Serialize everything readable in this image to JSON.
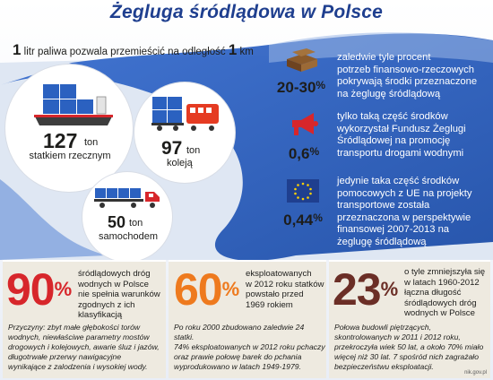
{
  "header": {
    "title": "Żegluga śródlądowa w Polsce",
    "intro_big_1": "1",
    "intro_text": " litr paliwa pozwala przemieścić na odległość ",
    "intro_big_2": "1",
    "intro_unit": " km"
  },
  "transport": [
    {
      "value": "127",
      "unit": "ton",
      "label": "statkiem rzecznym",
      "icon": "ship-icon"
    },
    {
      "value": "97",
      "unit": "ton",
      "label": "koleją",
      "icon": "train-icon"
    },
    {
      "value": "50",
      "unit": "ton",
      "label": "samochodem",
      "icon": "truck-icon"
    }
  ],
  "facts": [
    {
      "value": "20-30",
      "suffix": "%",
      "icon": "money-icon",
      "lines": [
        "zaledwie tyle procent",
        "potrzeb finansowo-rzeczowych",
        "pokrywają środki przeznaczone",
        "na żeglugę śródlądową"
      ]
    },
    {
      "value": "0,6",
      "suffix": "%",
      "icon": "megaphone-icon",
      "lines": [
        "tylko taką część środków",
        "wykorzystał Fundusz Żeglugi",
        "Śródlądowej na promocję",
        "transportu drogami wodnymi"
      ]
    },
    {
      "value": "0,44",
      "suffix": "%",
      "icon": "eu-flag-icon",
      "lines": [
        "jedynie taka część środków",
        "pomocowych z UE na projekty",
        "transportowe została",
        "przeznaczona w perspektywie",
        "finansowej 2007-2013 na",
        "żeglugę śródlądową"
      ]
    }
  ],
  "panels": [
    {
      "value": "90",
      "suffix": "%",
      "color": "#d7262b",
      "head": [
        "śródlądowych dróg",
        "wodnych w Polsce",
        "nie spełnia warunków",
        "zgodnych z ich",
        "klasyfikacją"
      ],
      "body": [
        "Przyczyny: zbyt małe głębokości torów",
        "wodnych, niewłaściwe parametry mostów",
        "drogowych i kolejowych, awarie śluz i jazów,",
        "długotrwałe przerwy nawigacyjne",
        "wynikające z zalodzenia i wysokiej wody."
      ]
    },
    {
      "value": "60",
      "suffix": "%",
      "color": "#ee7a1e",
      "head": [
        "eksploatowanych",
        "w 2012 roku statków",
        "powstało przed",
        "1969 rokiem"
      ],
      "body": [
        "Po roku 2000 zbudowano zaledwie 24 statki.",
        "74% eksploatowanych w 2012 roku pchaczy",
        "oraz prawie połowę barek do pchania",
        "wyprodukowano w latach 1949-1979."
      ]
    },
    {
      "value": "23",
      "suffix": "%",
      "color": "#6b2e26",
      "head": [
        "o tyle zmniejszyła się",
        "w latach 1960-2012",
        "łączna długość",
        "śródlądowych dróg",
        "wodnych w Polsce"
      ],
      "body": [
        "Połowa budowli piętrzących,",
        "skontrolowanych w 2011 i 2012 roku,",
        "przekroczyła wiek 50 lat, a około 70% miało",
        "więcej niż 30 lat. 7 spośród nich zagrażało",
        "bezpieczeństwu eksploatacji."
      ]
    }
  ],
  "credit": "nik.gov.pl",
  "colors": {
    "title": "#1f3f8f",
    "river": "#2b61c0",
    "river_light": "#7fa3dd",
    "panel_bg": "#eeeae0"
  }
}
